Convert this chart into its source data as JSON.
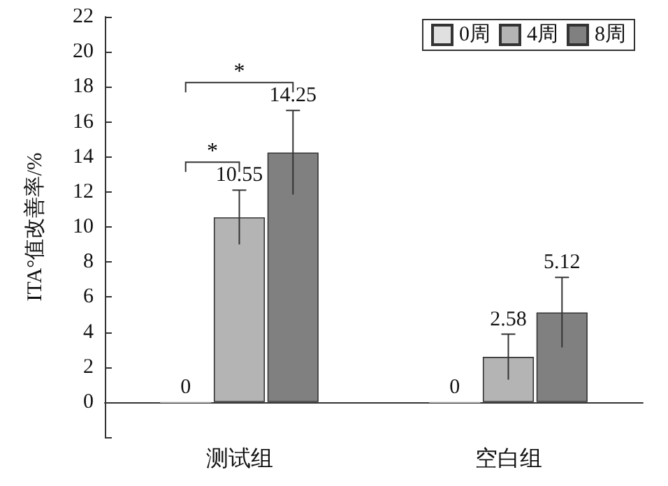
{
  "chart_data": {
    "type": "bar",
    "ylabel": "ITA°值改善率/%",
    "categories": [
      "测试组",
      "空白组"
    ],
    "series": [
      {
        "name": "0周",
        "color": "#e0e0e0",
        "values": [
          0,
          0
        ],
        "errors": [
          null,
          null
        ]
      },
      {
        "name": "4周",
        "color": "#b4b4b4",
        "values": [
          10.55,
          2.58
        ],
        "errors": [
          1.55,
          1.3
        ]
      },
      {
        "name": "8周",
        "color": "#808080",
        "values": [
          14.25,
          5.12
        ],
        "errors": [
          2.4,
          2.0
        ]
      }
    ],
    "data_labels": true,
    "ylim": [
      -2,
      22
    ],
    "yticks": [
      {
        "value": -2,
        "label": null
      },
      0,
      2,
      4,
      6,
      8,
      10,
      12,
      14,
      16,
      18,
      20,
      22
    ],
    "grid": false,
    "legend": "top right",
    "annotations": [
      "*",
      "*"
    ]
  }
}
